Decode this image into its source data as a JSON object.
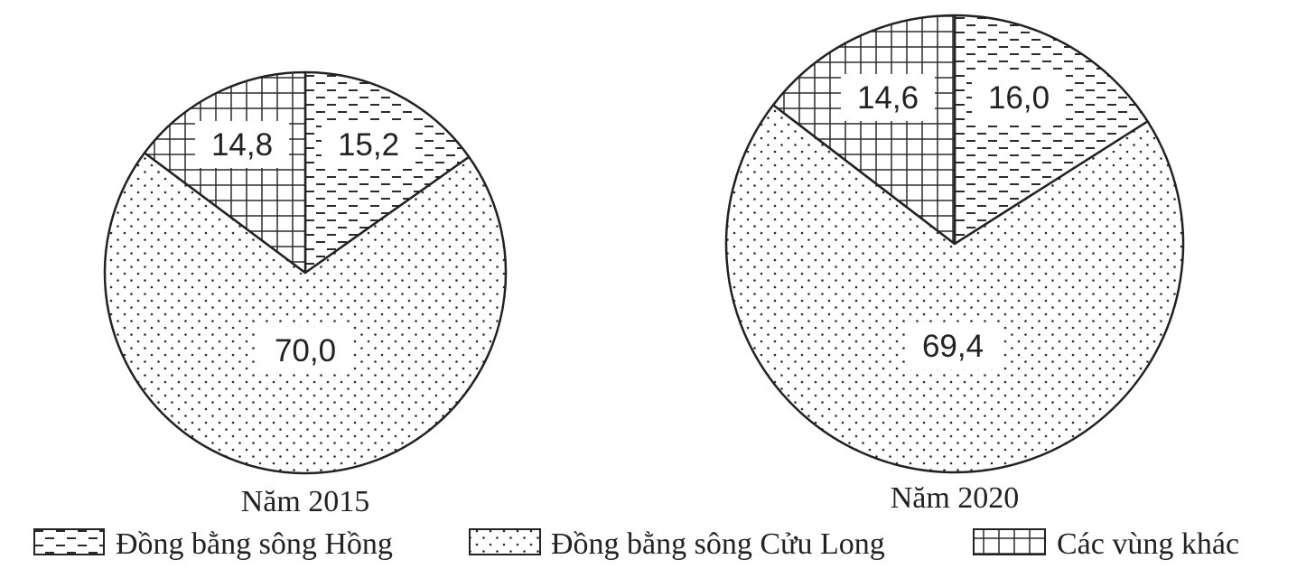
{
  "chart_data": [
    {
      "type": "pie",
      "title": "Năm 2015",
      "slices": [
        {
          "name": "Đồng bằng sông Hồng",
          "value": 15.2,
          "label": "15,2"
        },
        {
          "name": "Đồng bằng sông Cửu Long",
          "value": 70.0,
          "label": "70,0"
        },
        {
          "name": "Các vùng khác",
          "value": 14.8,
          "label": "14,8"
        }
      ]
    },
    {
      "type": "pie",
      "title": "Năm 2020",
      "slices": [
        {
          "name": "Đồng bằng sông Hồng",
          "value": 16.0,
          "label": "16,0"
        },
        {
          "name": "Đồng bằng sông Cửu Long",
          "value": 69.4,
          "label": "69,4"
        },
        {
          "name": "Các vùng khác",
          "value": 14.6,
          "label": "14,6"
        }
      ]
    }
  ],
  "legend": {
    "position": "bottom",
    "items": [
      {
        "name": "Đồng bằng sông Hồng",
        "pattern": "dashes"
      },
      {
        "name": "Đồng bằng sông Cửu Long",
        "pattern": "dots"
      },
      {
        "name": "Các vùng khác",
        "pattern": "grid"
      }
    ]
  },
  "colors": {
    "ink": "#222222",
    "pattern": "#2b2b2b",
    "background": "#ffffff"
  }
}
